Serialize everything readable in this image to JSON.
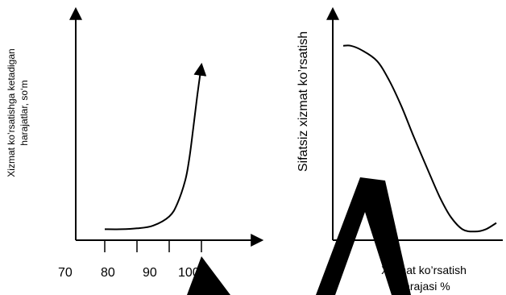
{
  "chart_data": [
    {
      "type": "line",
      "ylabel_line1": "Xizmat ko’rsatishga ketadigan",
      "ylabel_line2": "harajatlar, so‘m",
      "xlabel": "",
      "x_ticks": [
        "70",
        "80",
        "90",
        "100"
      ],
      "series": [
        {
          "x": [
            80,
            84,
            88,
            92,
            96,
            98,
            100,
            101,
            102,
            103,
            104
          ],
          "y": [
            0.06,
            0.06,
            0.065,
            0.08,
            0.13,
            0.2,
            0.33,
            0.45,
            0.62,
            0.8,
            0.96
          ]
        }
      ],
      "grid": false
    },
    {
      "type": "line",
      "ylabel": "Sifatsiz xizmat ko’rsatish",
      "xlabel_line1": "Xizmat ko’rsatish",
      "xlabel_line2": "darajasi %",
      "series": [
        {
          "x": [
            0,
            0.05,
            0.12,
            0.22,
            0.3,
            0.38,
            0.46,
            0.55,
            0.63,
            0.7,
            0.78,
            0.86,
            0.93,
            1.0
          ],
          "y": [
            0.9,
            0.9,
            0.88,
            0.83,
            0.74,
            0.62,
            0.48,
            0.33,
            0.2,
            0.11,
            0.05,
            0.04,
            0.05,
            0.08
          ]
        }
      ],
      "grid": false
    }
  ]
}
